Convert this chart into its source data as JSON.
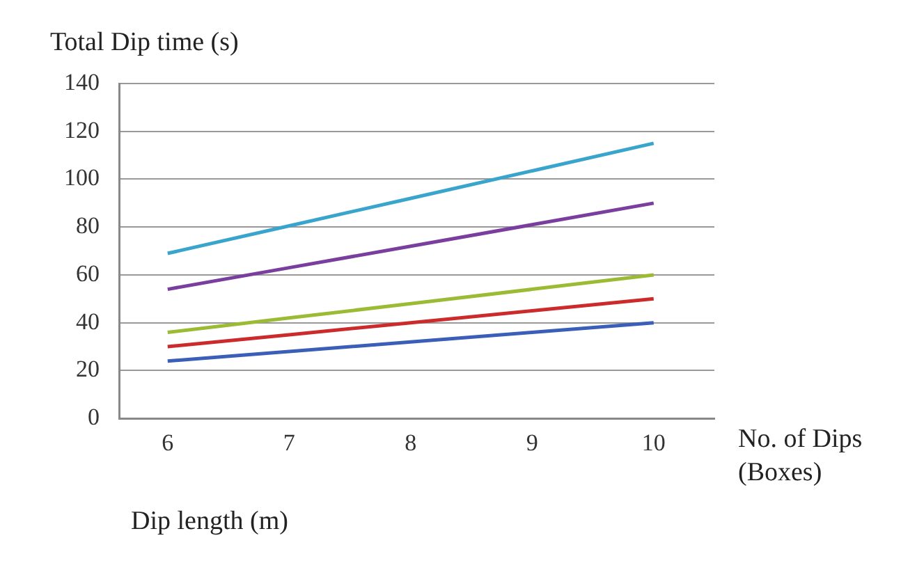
{
  "chart_data": {
    "type": "line",
    "ylabel": "Total Dip time (s)",
    "xlabel": "Dip length (m)",
    "annotations": [
      "No. of Dips (Boxes)"
    ],
    "x": [
      6,
      7,
      8,
      9,
      10
    ],
    "series": [
      {
        "color": "#3aa5cc",
        "values": [
          69,
          80.5,
          92,
          103.5,
          115
        ]
      },
      {
        "color": "#7a3f9e",
        "values": [
          54,
          63,
          72,
          81,
          90
        ]
      },
      {
        "color": "#9bbb34",
        "values": [
          36,
          42,
          48,
          54,
          60
        ]
      },
      {
        "color": "#cc2b2b",
        "values": [
          30,
          35,
          40,
          45,
          50
        ]
      },
      {
        "color": "#3b5fb8",
        "values": [
          24,
          28,
          32,
          36,
          40
        ]
      }
    ],
    "xlim": [
      5.6,
      10.5
    ],
    "xticks": [
      6,
      7,
      8,
      9,
      10
    ],
    "ylim": [
      0,
      140
    ],
    "yticks": [
      0,
      20,
      40,
      60,
      80,
      100,
      120,
      140
    ],
    "grid": "y",
    "marker": "none",
    "line_style": "solid",
    "legend": false
  }
}
